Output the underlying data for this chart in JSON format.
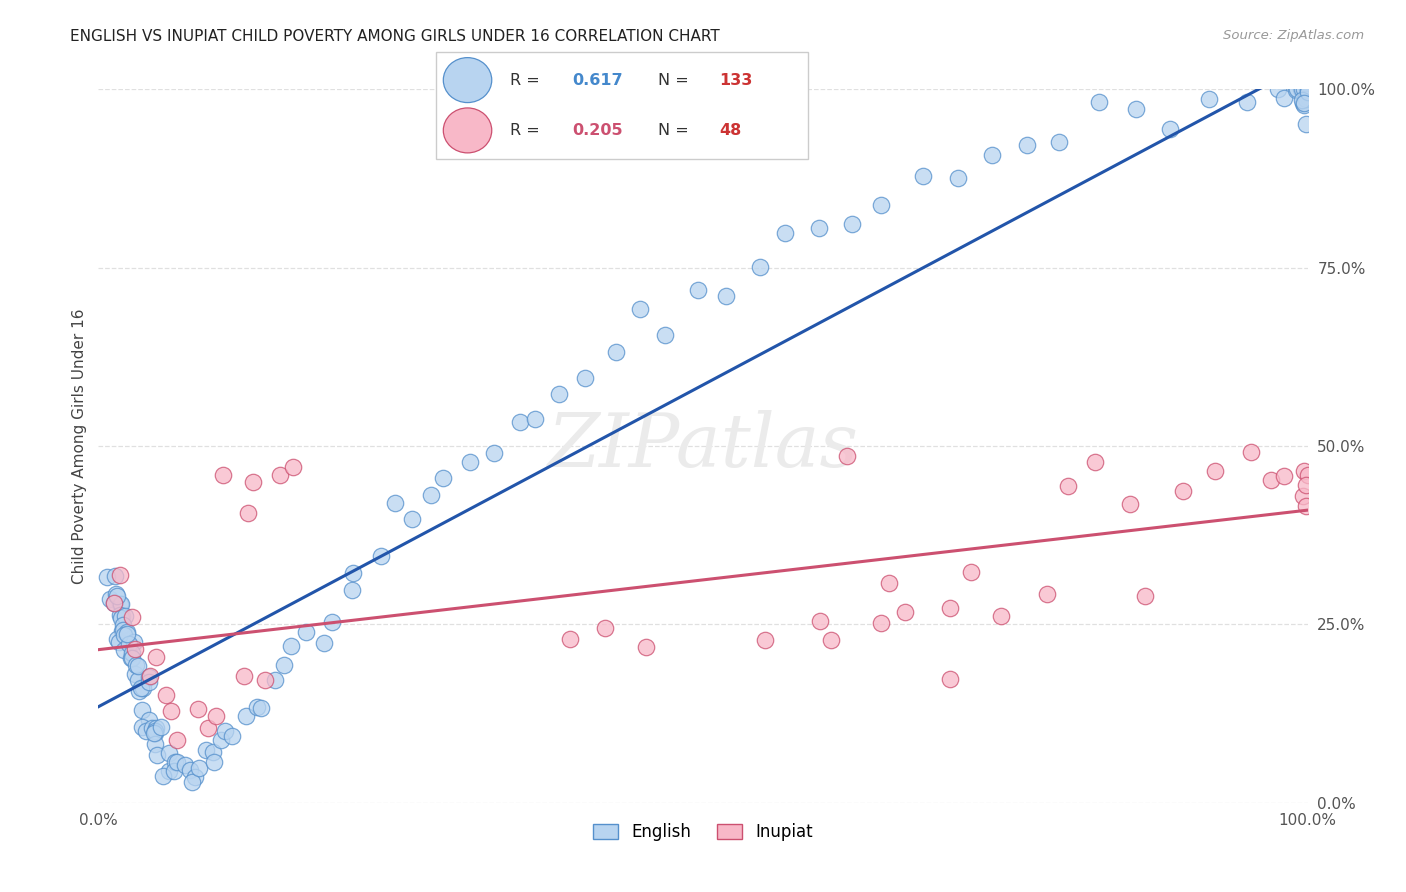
{
  "title": "ENGLISH VS INUPIAT CHILD POVERTY AMONG GIRLS UNDER 16 CORRELATION CHART",
  "source": "Source: ZipAtlas.com",
  "ylabel": "Child Poverty Among Girls Under 16",
  "xlim": [
    0.0,
    1.0
  ],
  "ylim": [
    0.0,
    1.0
  ],
  "xtick_positions": [
    0.0,
    1.0
  ],
  "xtick_labels": [
    "0.0%",
    "100.0%"
  ],
  "ytick_positions": [
    0.0,
    0.25,
    0.5,
    0.75,
    1.0
  ],
  "ytick_labels": [
    "0.0%",
    "25.0%",
    "50.0%",
    "75.0%",
    "100.0%"
  ],
  "grid_color": "#e0e0e0",
  "bg_color": "#ffffff",
  "english_face_color": "#B8D4F0",
  "english_edge_color": "#5590CC",
  "inupiat_face_color": "#F8B8C8",
  "inupiat_edge_color": "#CC5070",
  "line_english_color": "#2255AA",
  "line_inupiat_color": "#CC5070",
  "R_english": 0.617,
  "N_english": 133,
  "R_inupiat": 0.205,
  "N_inupiat": 48,
  "watermark_color": "#ebebeb",
  "legend_text_color": "#333333",
  "R_value_english_color": "#4488CC",
  "N_value_color": "#CC3333",
  "R_value_inupiat_color": "#CC5070",
  "title_color": "#222222",
  "source_color": "#999999",
  "tick_color": "#555555",
  "legend_border_color": "#cccccc",
  "en_x": [
    0.006,
    0.01,
    0.012,
    0.013,
    0.014,
    0.015,
    0.015,
    0.016,
    0.017,
    0.018,
    0.019,
    0.02,
    0.021,
    0.021,
    0.022,
    0.022,
    0.023,
    0.023,
    0.024,
    0.025,
    0.025,
    0.026,
    0.027,
    0.028,
    0.029,
    0.03,
    0.031,
    0.032,
    0.033,
    0.034,
    0.035,
    0.036,
    0.037,
    0.038,
    0.039,
    0.04,
    0.041,
    0.042,
    0.043,
    0.044,
    0.045,
    0.046,
    0.047,
    0.048,
    0.05,
    0.051,
    0.053,
    0.055,
    0.057,
    0.059,
    0.062,
    0.064,
    0.067,
    0.07,
    0.073,
    0.077,
    0.08,
    0.084,
    0.088,
    0.092,
    0.097,
    0.102,
    0.108,
    0.114,
    0.12,
    0.127,
    0.135,
    0.143,
    0.152,
    0.161,
    0.171,
    0.182,
    0.193,
    0.205,
    0.218,
    0.231,
    0.245,
    0.26,
    0.275,
    0.291,
    0.308,
    0.326,
    0.344,
    0.363,
    0.383,
    0.404,
    0.425,
    0.447,
    0.47,
    0.494,
    0.519,
    0.544,
    0.57,
    0.597,
    0.624,
    0.652,
    0.681,
    0.71,
    0.739,
    0.769,
    0.799,
    0.829,
    0.859,
    0.889,
    0.919,
    0.949,
    0.97,
    0.98,
    0.99,
    0.995,
    0.997,
    0.998,
    0.999,
    1.0,
    1.0,
    1.0,
    1.0,
    1.0,
    1.0,
    1.0,
    1.0,
    1.0,
    1.0,
    1.0,
    1.0,
    1.0,
    1.0,
    1.0,
    1.0,
    1.0,
    1.0,
    1.0,
    1.0
  ],
  "en_y": [
    0.31,
    0.3,
    0.295,
    0.29,
    0.285,
    0.28,
    0.28,
    0.275,
    0.27,
    0.265,
    0.26,
    0.255,
    0.25,
    0.248,
    0.245,
    0.242,
    0.238,
    0.235,
    0.23,
    0.225,
    0.222,
    0.218,
    0.213,
    0.208,
    0.203,
    0.198,
    0.193,
    0.187,
    0.181,
    0.175,
    0.169,
    0.162,
    0.155,
    0.148,
    0.141,
    0.134,
    0.127,
    0.12,
    0.113,
    0.106,
    0.1,
    0.094,
    0.088,
    0.082,
    0.076,
    0.071,
    0.066,
    0.061,
    0.057,
    0.053,
    0.05,
    0.048,
    0.047,
    0.046,
    0.047,
    0.049,
    0.052,
    0.056,
    0.061,
    0.068,
    0.076,
    0.085,
    0.095,
    0.107,
    0.12,
    0.134,
    0.15,
    0.167,
    0.185,
    0.204,
    0.224,
    0.245,
    0.267,
    0.29,
    0.314,
    0.338,
    0.363,
    0.389,
    0.415,
    0.441,
    0.468,
    0.495,
    0.522,
    0.549,
    0.576,
    0.603,
    0.63,
    0.657,
    0.683,
    0.709,
    0.734,
    0.758,
    0.782,
    0.805,
    0.827,
    0.848,
    0.868,
    0.887,
    0.905,
    0.921,
    0.936,
    0.95,
    0.963,
    0.974,
    0.984,
    0.992,
    0.997,
    0.999,
    1.0,
    1.0,
    1.0,
    1.0,
    1.0,
    1.0,
    1.0,
    1.0,
    1.0,
    1.0,
    1.0,
    1.0,
    1.0,
    1.0,
    1.0,
    1.0,
    1.0,
    1.0,
    1.0,
    1.0,
    1.0,
    1.0,
    1.0,
    1.0,
    1.0
  ],
  "in_x": [
    0.01,
    0.02,
    0.03,
    0.03,
    0.04,
    0.05,
    0.05,
    0.06,
    0.07,
    0.08,
    0.09,
    0.1,
    0.12,
    0.14,
    0.15,
    0.1,
    0.12,
    0.13,
    0.15,
    0.4,
    0.42,
    0.45,
    0.55,
    0.6,
    0.62,
    0.65,
    0.67,
    0.7,
    0.72,
    0.75,
    0.78,
    0.8,
    0.82,
    0.85,
    0.87,
    0.9,
    0.92,
    0.95,
    0.97,
    0.98,
    0.99,
    1.0,
    1.0,
    1.0,
    1.0,
    0.6,
    0.65,
    0.7
  ],
  "in_y": [
    0.3,
    0.28,
    0.25,
    0.22,
    0.2,
    0.18,
    0.15,
    0.12,
    0.1,
    0.1,
    0.12,
    0.14,
    0.16,
    0.16,
    0.45,
    0.45,
    0.45,
    0.42,
    0.47,
    0.24,
    0.23,
    0.22,
    0.24,
    0.26,
    0.48,
    0.26,
    0.28,
    0.27,
    0.32,
    0.27,
    0.3,
    0.44,
    0.5,
    0.44,
    0.3,
    0.44,
    0.46,
    0.47,
    0.44,
    0.46,
    0.43,
    0.48,
    0.46,
    0.42,
    0.44,
    0.24,
    0.3,
    0.15
  ]
}
